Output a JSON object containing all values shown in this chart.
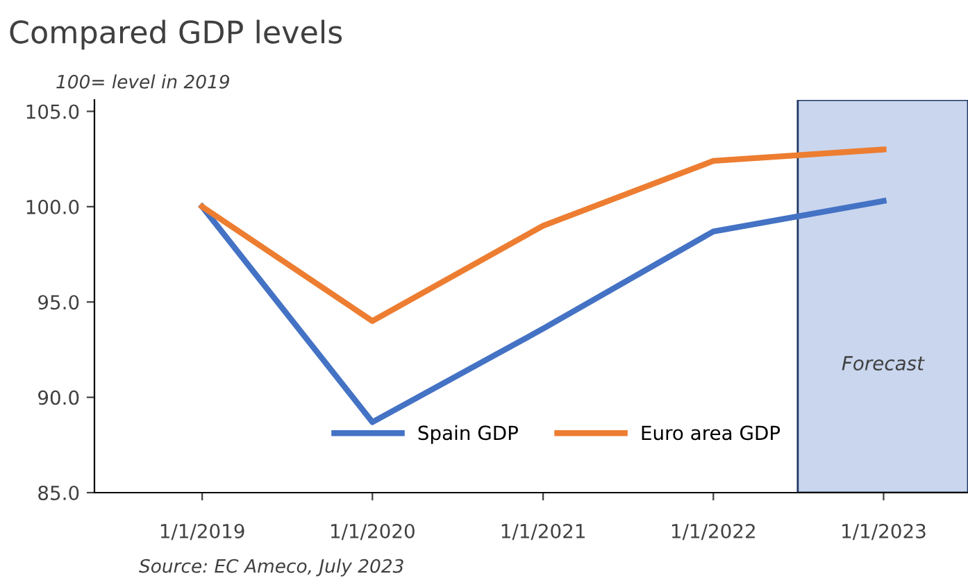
{
  "chart_data": {
    "type": "line",
    "title": "Compared GDP levels",
    "subtitle": "100= level in 2019",
    "x": [
      "2019-01-01",
      "2020-01-01",
      "2021-01-01",
      "2022-01-01",
      "2023-01-01"
    ],
    "series": [
      {
        "name": "Spain GDP",
        "color": "#4472c4",
        "values": [
          100.0,
          88.7,
          93.6,
          98.7,
          100.3
        ]
      },
      {
        "name": "Euro area GDP",
        "color": "#ed7d31",
        "values": [
          100.0,
          94.0,
          99.0,
          102.4,
          103.0
        ]
      }
    ],
    "xlim": [
      "2018-05-15",
      "2023-07-01"
    ],
    "xticks": [
      {
        "value": "2019-01-01",
        "label": "1/1/2019"
      },
      {
        "value": "2020-01-01",
        "label": "1/1/2020"
      },
      {
        "value": "2021-01-01",
        "label": "1/1/2021"
      },
      {
        "value": "2022-01-01",
        "label": "1/1/2022"
      },
      {
        "value": "2023-01-01",
        "label": "1/1/2023"
      }
    ],
    "ylim": [
      85,
      105.6
    ],
    "yticks": [
      {
        "value": 85,
        "label": "85.0"
      },
      {
        "value": 90,
        "label": "90.0"
      },
      {
        "value": 95,
        "label": "95.0"
      },
      {
        "value": 100,
        "label": "100.0"
      },
      {
        "value": 105,
        "label": "105.0"
      }
    ],
    "bands": [
      {
        "axis": "x",
        "from": "2022-07-01",
        "to": "2023-07-01",
        "label": "Forecast",
        "color": "#c9d6ee"
      }
    ],
    "annotations": [
      "Source: EC Ameco, July 2023"
    ],
    "legend": "bottom",
    "grid": false,
    "marker": "none",
    "line_style": "solid"
  }
}
